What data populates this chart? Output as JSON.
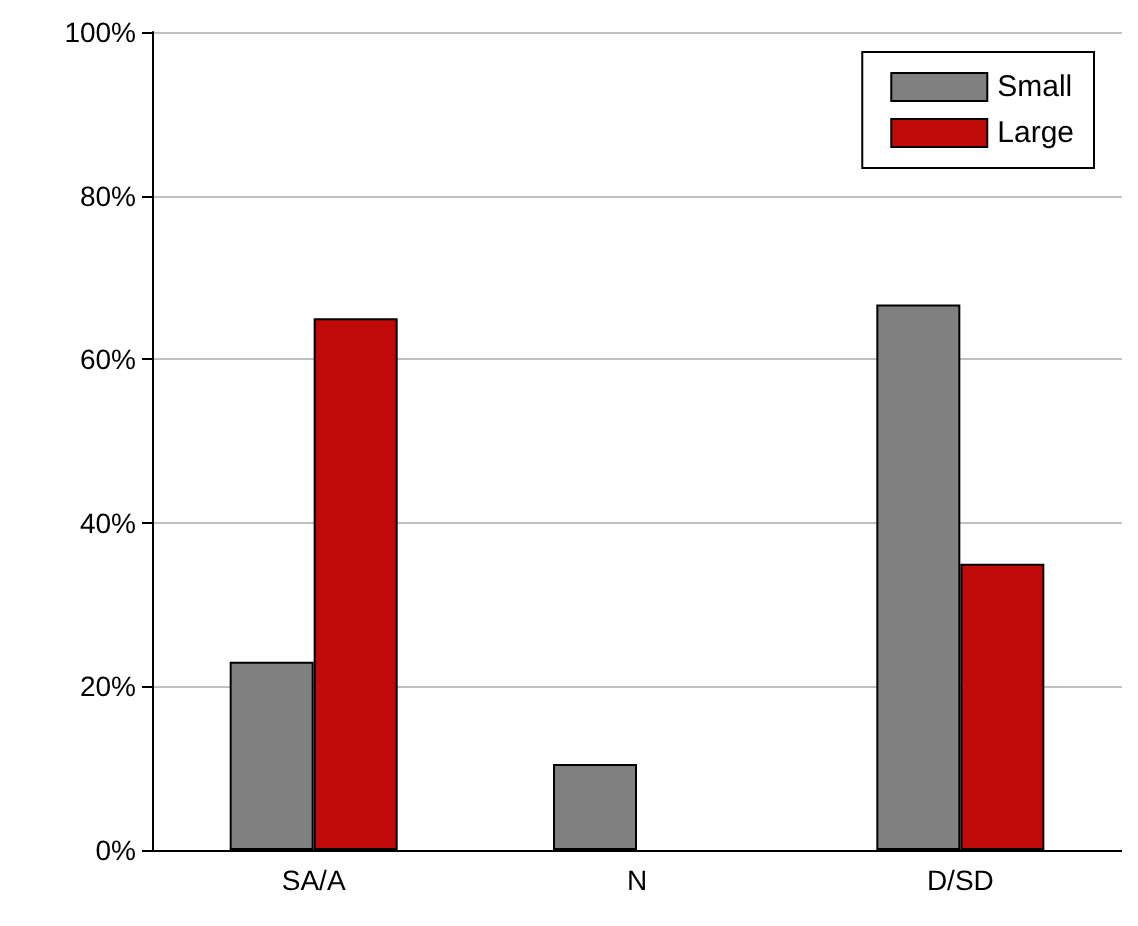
{
  "chart_data": {
    "type": "bar",
    "categories": [
      "SA/A",
      "N",
      "D/SD"
    ],
    "series": [
      {
        "name": "Small",
        "color": "#808080",
        "values": [
          23,
          10.5,
          66.7
        ]
      },
      {
        "name": "Large",
        "color": "#c00a0a",
        "values": [
          65,
          null,
          35
        ]
      }
    ],
    "ylim": [
      0,
      100
    ],
    "yticks": [
      {
        "value": 0,
        "label": "0%"
      },
      {
        "value": 20,
        "label": "20%"
      },
      {
        "value": 40,
        "label": "40%"
      },
      {
        "value": 60,
        "label": "60%"
      },
      {
        "value": 80,
        "label": "80%"
      },
      {
        "value": 100,
        "label": "100%"
      }
    ],
    "grid": "y",
    "legend": "top right"
  }
}
